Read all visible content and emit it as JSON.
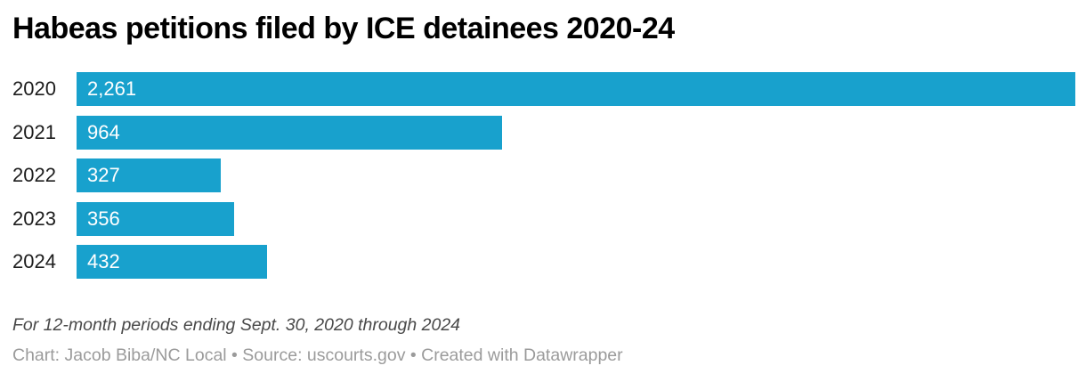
{
  "header": {
    "title": "Habeas petitions filed by ICE detainees 2020-24"
  },
  "chart_data": {
    "type": "bar",
    "orientation": "horizontal",
    "title": "Habeas petitions filed by ICE detainees 2020-24",
    "categories": [
      "2020",
      "2021",
      "2022",
      "2023",
      "2024"
    ],
    "values": [
      2261,
      964,
      327,
      356,
      432
    ],
    "value_labels": [
      "2,261",
      "964",
      "327",
      "356",
      "432"
    ],
    "xlim": [
      0,
      2261
    ],
    "xlabel": "",
    "ylabel": "",
    "grid": false,
    "legend": "none",
    "bar_color": "#18a1cd",
    "value_label_color": "#ffffff",
    "category_label_color": "#1d1d1d"
  },
  "footer": {
    "note": "For 12-month periods ending Sept. 30, 2020 through 2024",
    "attribution": "Chart: Jacob Biba/NC Local • Source: uscourts.gov • Created with Datawrapper"
  }
}
